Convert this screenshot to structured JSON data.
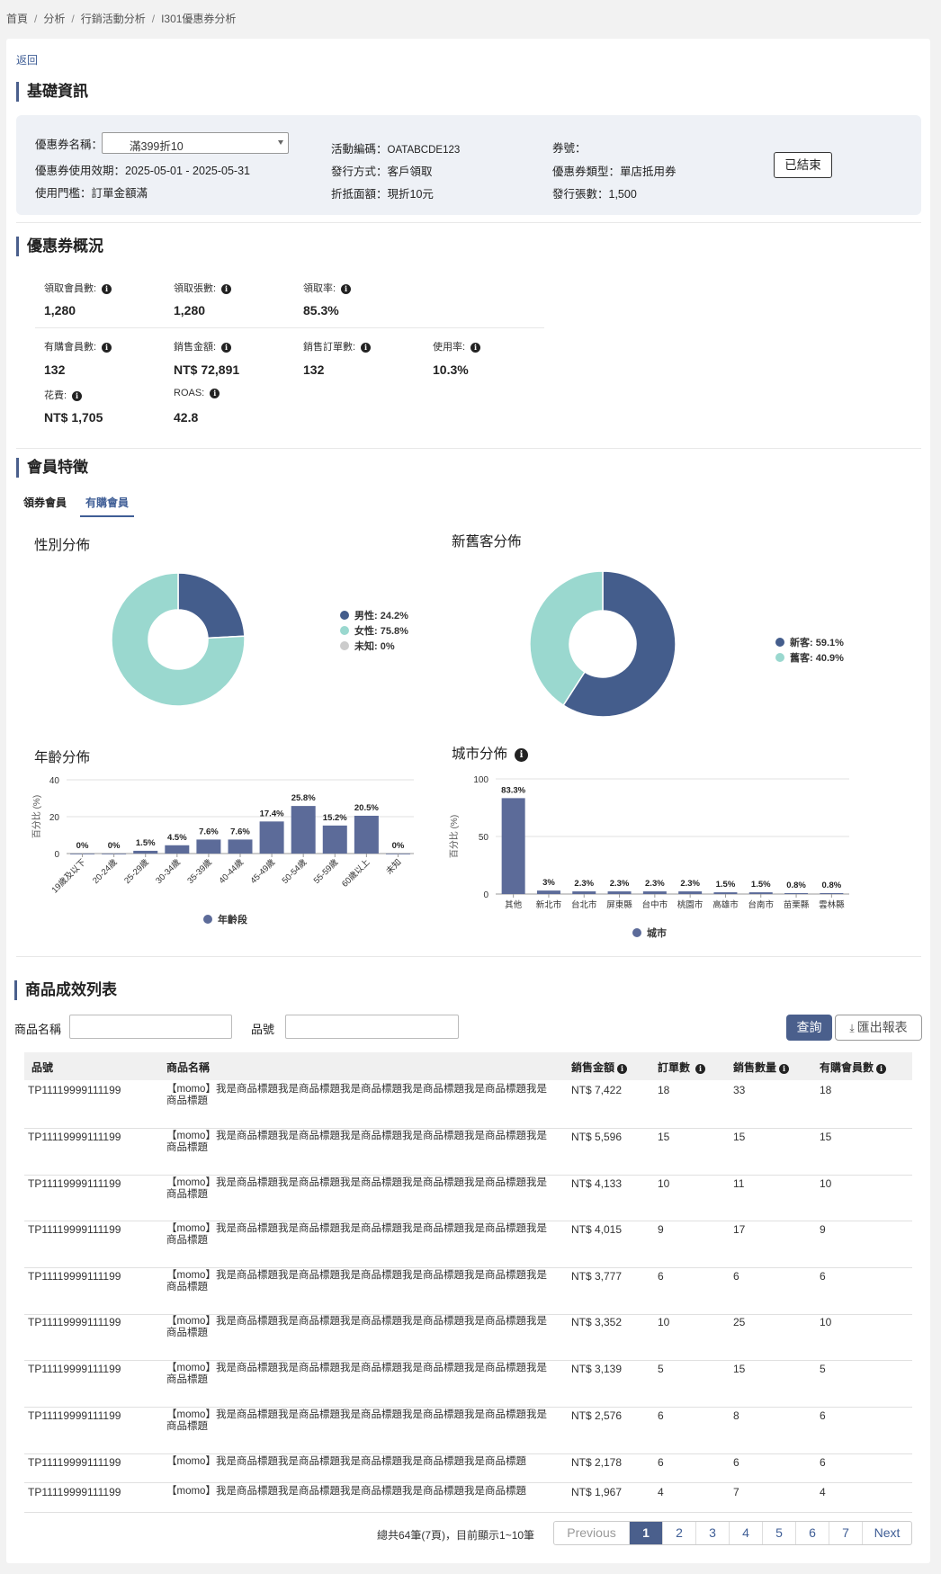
{
  "breadcrumb": [
    "首頁",
    "分析",
    "行銷活動分析",
    "I301優惠券分析"
  ],
  "back_label": "返回",
  "basic": {
    "title": "基礎資訊",
    "coupon_name_label": "優惠券名稱：",
    "coupon_name_value": "滿399折10",
    "period": "優惠券使用效期：2025-05-01 - 2025-05-31",
    "threshold": "使用門檻：訂單金額滿",
    "activity_code_label": "活動編碼：",
    "activity_code_value": "OATABCDE123",
    "issue_method": "發行方式：客戶領取",
    "discount": "折抵面額：現折10元",
    "coupon_no": "券號：",
    "coupon_type": "優惠券類型：單店抵用券",
    "issued_count": "發行張數：1,500",
    "status": "已結束"
  },
  "overview": {
    "title": "優惠券概況",
    "metrics": [
      {
        "label": "領取會員數:",
        "value": "1,280"
      },
      {
        "label": "領取張數:",
        "value": "1,280"
      },
      {
        "label": "領取率:",
        "value": "85.3%"
      },
      {
        "label": "有購會員數:",
        "value": "132"
      },
      {
        "label": "銷售金額:",
        "value": "NT$ 72,891"
      },
      {
        "label": "銷售訂單數:",
        "value": "132"
      },
      {
        "label": "使用率:",
        "value": "10.3%"
      },
      {
        "label": "花費:",
        "value": "NT$ 1,705"
      },
      {
        "label": "ROAS:",
        "value": "42.8"
      }
    ]
  },
  "members": {
    "title": "會員特徵",
    "tabs": [
      "領券會員",
      "有購會員"
    ],
    "active_tab": 1
  },
  "chart_data": [
    {
      "type": "pie",
      "title": "性別分佈",
      "labels": [
        "男性",
        "女性",
        "未知"
      ],
      "values": [
        24.2,
        75.8,
        0
      ],
      "legend": [
        "男性: 24.2%",
        "女性: 75.8%",
        "未知: 0%"
      ],
      "colors": [
        "#445d8c",
        "#9ad8cf",
        "#cccccc"
      ]
    },
    {
      "type": "pie",
      "title": "新舊客分佈",
      "labels": [
        "新客",
        "舊客"
      ],
      "values": [
        59.1,
        40.9
      ],
      "legend": [
        "新客: 59.1%",
        "舊客: 40.9%"
      ],
      "colors": [
        "#445d8c",
        "#9ad8cf"
      ]
    },
    {
      "type": "bar",
      "title": "年齡分佈",
      "ylabel": "百分比 (%)",
      "categories": [
        "19歲及以下",
        "20-24歲",
        "25-29歲",
        "30-34歲",
        "35-39歲",
        "40-44歲",
        "45-49歲",
        "50-54歲",
        "55-59歲",
        "60歲以上",
        "未知"
      ],
      "values": [
        0,
        0,
        1.5,
        4.5,
        7.6,
        7.6,
        17.4,
        25.8,
        15.2,
        20.5,
        0
      ],
      "data_labels": [
        "0%",
        "0%",
        "1.5%",
        "4.5%",
        "7.6%",
        "7.6%",
        "17.4%",
        "25.8%",
        "15.2%",
        "20.5%",
        "0%"
      ],
      "ylim": [
        0,
        40
      ],
      "yticks": [
        "0",
        "20",
        "40"
      ],
      "series_name": "年齡段",
      "color": "#5c6b99"
    },
    {
      "type": "bar",
      "title": "城市分佈",
      "ylabel": "百分比 (%)",
      "categories": [
        "其他",
        "新北市",
        "台北市",
        "屏東縣",
        "台中市",
        "桃園市",
        "高雄市",
        "台南市",
        "苗栗縣",
        "雲林縣"
      ],
      "values": [
        83.3,
        3,
        2.3,
        2.3,
        2.3,
        2.3,
        1.5,
        1.5,
        0.8,
        0.8
      ],
      "data_labels": [
        "83.3%",
        "3%",
        "2.3%",
        "2.3%",
        "2.3%",
        "2.3%",
        "1.5%",
        "1.5%",
        "0.8%",
        "0.8%"
      ],
      "ylim": [
        0,
        100
      ],
      "yticks": [
        "0",
        "50",
        "100"
      ],
      "series_name": "城市",
      "color": "#5c6b99"
    }
  ],
  "products": {
    "title": "商品成效列表",
    "name_label": "商品名稱",
    "sku_label": "品號",
    "query": "查詢",
    "export": "匯出報表",
    "columns": [
      "品號",
      "商品名稱",
      "銷售金額",
      "訂單數",
      "銷售數量",
      "有購會員數"
    ],
    "rows": [
      {
        "sku": "TP11119999111199",
        "name": "【momo】我是商品標題我是商品標題我是商品標題我是商品標題我是商品標題我是商品標題",
        "amount": "NT$ 7,422",
        "orders": "18",
        "qty": "33",
        "buyers": "18"
      },
      {
        "sku": "TP11119999111199",
        "name": "【momo】我是商品標題我是商品標題我是商品標題我是商品標題我是商品標題我是商品標題",
        "amount": "NT$ 5,596",
        "orders": "15",
        "qty": "15",
        "buyers": "15"
      },
      {
        "sku": "TP11119999111199",
        "name": "【momo】我是商品標題我是商品標題我是商品標題我是商品標題我是商品標題我是商品標題",
        "amount": "NT$ 4,133",
        "orders": "10",
        "qty": "11",
        "buyers": "10"
      },
      {
        "sku": "TP11119999111199",
        "name": "【momo】我是商品標題我是商品標題我是商品標題我是商品標題我是商品標題我是商品標題",
        "amount": "NT$ 4,015",
        "orders": "9",
        "qty": "17",
        "buyers": "9"
      },
      {
        "sku": "TP11119999111199",
        "name": "【momo】我是商品標題我是商品標題我是商品標題我是商品標題我是商品標題我是商品標題",
        "amount": "NT$ 3,777",
        "orders": "6",
        "qty": "6",
        "buyers": "6"
      },
      {
        "sku": "TP11119999111199",
        "name": "【momo】我是商品標題我是商品標題我是商品標題我是商品標題我是商品標題我是商品標題",
        "amount": "NT$ 3,352",
        "orders": "10",
        "qty": "25",
        "buyers": "10"
      },
      {
        "sku": "TP11119999111199",
        "name": "【momo】我是商品標題我是商品標題我是商品標題我是商品標題我是商品標題我是商品標題",
        "amount": "NT$ 3,139",
        "orders": "5",
        "qty": "15",
        "buyers": "5"
      },
      {
        "sku": "TP11119999111199",
        "name": "【momo】我是商品標題我是商品標題我是商品標題我是商品標題我是商品標題我是商品標題",
        "amount": "NT$ 2,576",
        "orders": "6",
        "qty": "8",
        "buyers": "6"
      },
      {
        "sku": "TP11119999111199",
        "name": "【momo】我是商品標題我是商品標題我是商品標題我是商品標題我是商品標題",
        "amount": "NT$ 2,178",
        "orders": "6",
        "qty": "6",
        "buyers": "6"
      },
      {
        "sku": "TP11119999111199",
        "name": "【momo】我是商品標題我是商品標題我是商品標題我是商品標題我是商品標題",
        "amount": "NT$ 1,967",
        "orders": "4",
        "qty": "7",
        "buyers": "4"
      }
    ],
    "pagination": {
      "info": "總共64筆(7頁)，目前顯示1~10筆",
      "previous": "Previous",
      "pages": [
        "1",
        "2",
        "3",
        "4",
        "5",
        "6",
        "7"
      ],
      "current": "1",
      "next": "Next"
    }
  }
}
